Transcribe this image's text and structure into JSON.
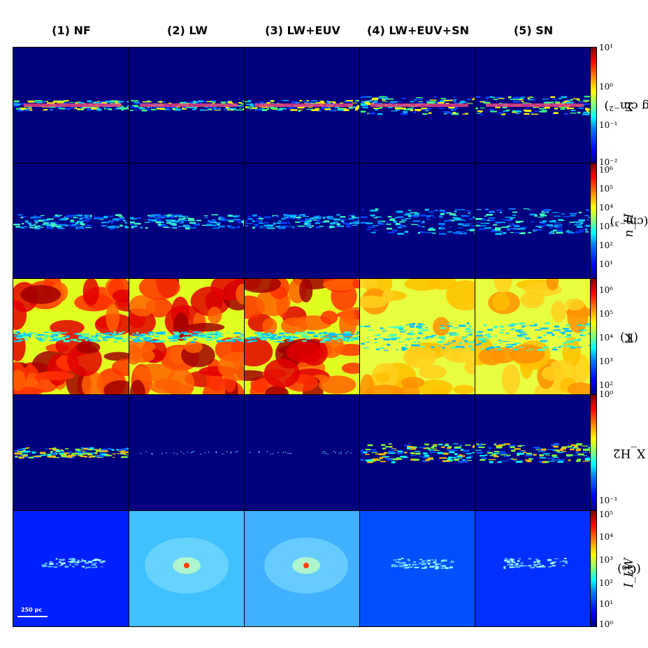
{
  "columns": [
    "(1) NF",
    "(2) LW",
    "(3) LW+EUV",
    "(4) LW+EUV+SN",
    "(5) SN"
  ],
  "rows": [
    {
      "quantity": "Σ",
      "unit": "(g cm⁻²)",
      "ticks": [
        "10¹",
        "10⁰",
        "10⁻¹",
        "10⁻²"
      ]
    },
    {
      "quantity": "n_H",
      "unit": "(cm⁻³)",
      "ticks": [
        "10⁶",
        "10⁵",
        "10⁴",
        "10³",
        "10²",
        "10¹"
      ]
    },
    {
      "quantity": "T",
      "unit": "(K)",
      "ticks": [
        "10⁶",
        "10⁵",
        "10⁴",
        "10³",
        "10²"
      ]
    },
    {
      "quantity": "X_H2",
      "unit": "",
      "ticks": [
        "10⁰",
        "10⁻¹"
      ]
    },
    {
      "quantity": "I_LW",
      "unit": "(G₀)",
      "ticks": [
        "10⁵",
        "10⁴",
        "10³",
        "10²",
        "10¹",
        "10⁰"
      ]
    }
  ],
  "scale_bar": {
    "label": "250 pc"
  },
  "colormap": "jet",
  "colors": {
    "background_low": "#00007f",
    "mid": "#00ffff",
    "high": "#7f0000"
  }
}
